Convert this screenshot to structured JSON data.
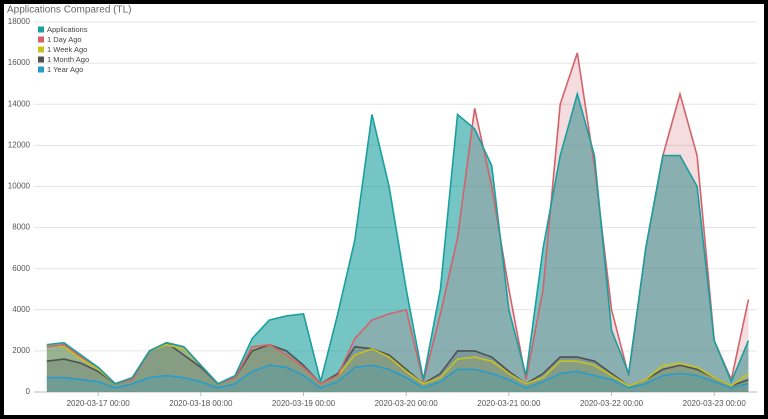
{
  "chart_data": {
    "type": "area",
    "title": "Applications Compared (TL)",
    "x": [
      "2020-03-16 12:00",
      "2020-03-16 16:00",
      "2020-03-16 20:00",
      "2020-03-17 00:00",
      "2020-03-17 04:00",
      "2020-03-17 08:00",
      "2020-03-17 12:00",
      "2020-03-17 16:00",
      "2020-03-17 20:00",
      "2020-03-18 00:00",
      "2020-03-18 04:00",
      "2020-03-18 08:00",
      "2020-03-18 12:00",
      "2020-03-18 16:00",
      "2020-03-18 20:00",
      "2020-03-19 00:00",
      "2020-03-19 04:00",
      "2020-03-19 08:00",
      "2020-03-19 12:00",
      "2020-03-19 16:00",
      "2020-03-19 20:00",
      "2020-03-20 00:00",
      "2020-03-20 04:00",
      "2020-03-20 08:00",
      "2020-03-20 12:00",
      "2020-03-20 16:00",
      "2020-03-20 20:00",
      "2020-03-21 00:00",
      "2020-03-21 04:00",
      "2020-03-21 08:00",
      "2020-03-21 12:00",
      "2020-03-21 16:00",
      "2020-03-21 20:00",
      "2020-03-22 00:00",
      "2020-03-22 04:00",
      "2020-03-22 08:00",
      "2020-03-22 12:00",
      "2020-03-22 16:00",
      "2020-03-22 20:00",
      "2020-03-23 00:00",
      "2020-03-23 04:00",
      "2020-03-23 08:00"
    ],
    "series": [
      {
        "name": "Applications",
        "color": "#1a9f9f",
        "values": [
          2300,
          2400,
          1800,
          1200,
          400,
          700,
          2000,
          2400,
          2200,
          1300,
          400,
          800,
          2600,
          3500,
          3700,
          3800,
          500,
          3800,
          7400,
          13500,
          10000,
          5000,
          600,
          5000,
          13500,
          12800,
          11000,
          4000,
          800,
          7000,
          11500,
          14500,
          11500,
          3000,
          900,
          7000,
          11500,
          11500,
          10000,
          2500,
          500,
          2500
        ]
      },
      {
        "name": "1 Day Ago",
        "color": "#d2626c",
        "values": [
          2200,
          2300,
          1700,
          1200,
          400,
          600,
          2000,
          2400,
          2200,
          1300,
          400,
          700,
          2200,
          2300,
          1800,
          1200,
          400,
          800,
          2600,
          3500,
          3800,
          4000,
          500,
          3800,
          7500,
          13800,
          10000,
          5000,
          600,
          5000,
          14000,
          16500,
          11000,
          4000,
          800,
          7000,
          11500,
          14500,
          11500,
          2500,
          600,
          4500
        ]
      },
      {
        "name": "1 Week Ago",
        "color": "#c9c21e",
        "values": [
          2300,
          2200,
          1600,
          1100,
          400,
          700,
          2000,
          2300,
          2100,
          1300,
          400,
          700,
          2200,
          2300,
          1800,
          1200,
          400,
          800,
          1800,
          2100,
          1700,
          1000,
          400,
          700,
          1600,
          1700,
          1500,
          900,
          400,
          700,
          1500,
          1500,
          1300,
          800,
          300,
          600,
          1300,
          1400,
          1200,
          700,
          300,
          900
        ]
      },
      {
        "name": "1 Month Ago",
        "color": "#4f5152",
        "values": [
          1500,
          1600,
          1400,
          1000,
          400,
          700,
          2000,
          2400,
          1800,
          1200,
          400,
          700,
          2000,
          2300,
          2000,
          1300,
          400,
          900,
          2200,
          2100,
          1800,
          1100,
          400,
          900,
          2000,
          2000,
          1700,
          1000,
          400,
          900,
          1700,
          1700,
          1500,
          900,
          300,
          600,
          1100,
          1300,
          1100,
          700,
          300,
          600
        ]
      },
      {
        "name": "1 Year Ago",
        "color": "#279ccb",
        "values": [
          700,
          700,
          600,
          500,
          200,
          400,
          700,
          800,
          700,
          500,
          200,
          400,
          1000,
          1300,
          1200,
          800,
          200,
          500,
          1200,
          1300,
          1100,
          700,
          200,
          500,
          1100,
          1100,
          900,
          600,
          200,
          500,
          900,
          1000,
          800,
          600,
          200,
          400,
          800,
          900,
          800,
          500,
          200,
          400
        ]
      }
    ],
    "xlim": [
      "2020-03-16 09:00",
      "2020-03-23 10:00"
    ],
    "xticks": [
      "2020-03-17 00:00",
      "2020-03-18 00:00",
      "2020-03-19 00:00",
      "2020-03-20 00:00",
      "2020-03-21 00:00",
      "2020-03-22 00:00",
      "2020-03-23 00:00"
    ],
    "ylim": [
      0,
      18000
    ],
    "yticks": [
      0,
      2000,
      4000,
      6000,
      8000,
      10000,
      12000,
      14000,
      16000,
      18000
    ],
    "grid": true,
    "legend": "top-left"
  }
}
